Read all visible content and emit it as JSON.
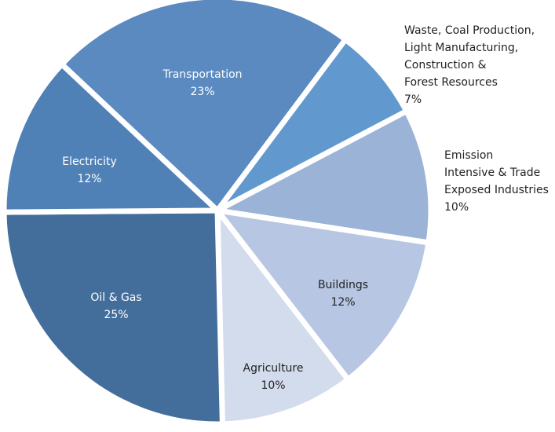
{
  "chart_data": {
    "type": "pie",
    "categories": [
      "Transportation",
      "Waste, Coal Production,\nLight Manufacturing,\nConstruction &\nForest Resources",
      "Emission\nIntensive & Trade\nExposed Industries",
      "Buildings",
      "Agriculture",
      "Oil & Gas",
      "Electricity"
    ],
    "values": [
      23,
      7,
      10,
      12,
      10,
      25,
      12
    ],
    "value_labels": [
      "23%",
      "7%",
      "10%",
      "12%",
      "10%",
      "25%",
      "12%"
    ],
    "colors": [
      "#5a8ac0",
      "#6199cf",
      "#9bb3d6",
      "#b7c6e2",
      "#d3dcec",
      "#436e9b",
      "#5081b6"
    ]
  }
}
